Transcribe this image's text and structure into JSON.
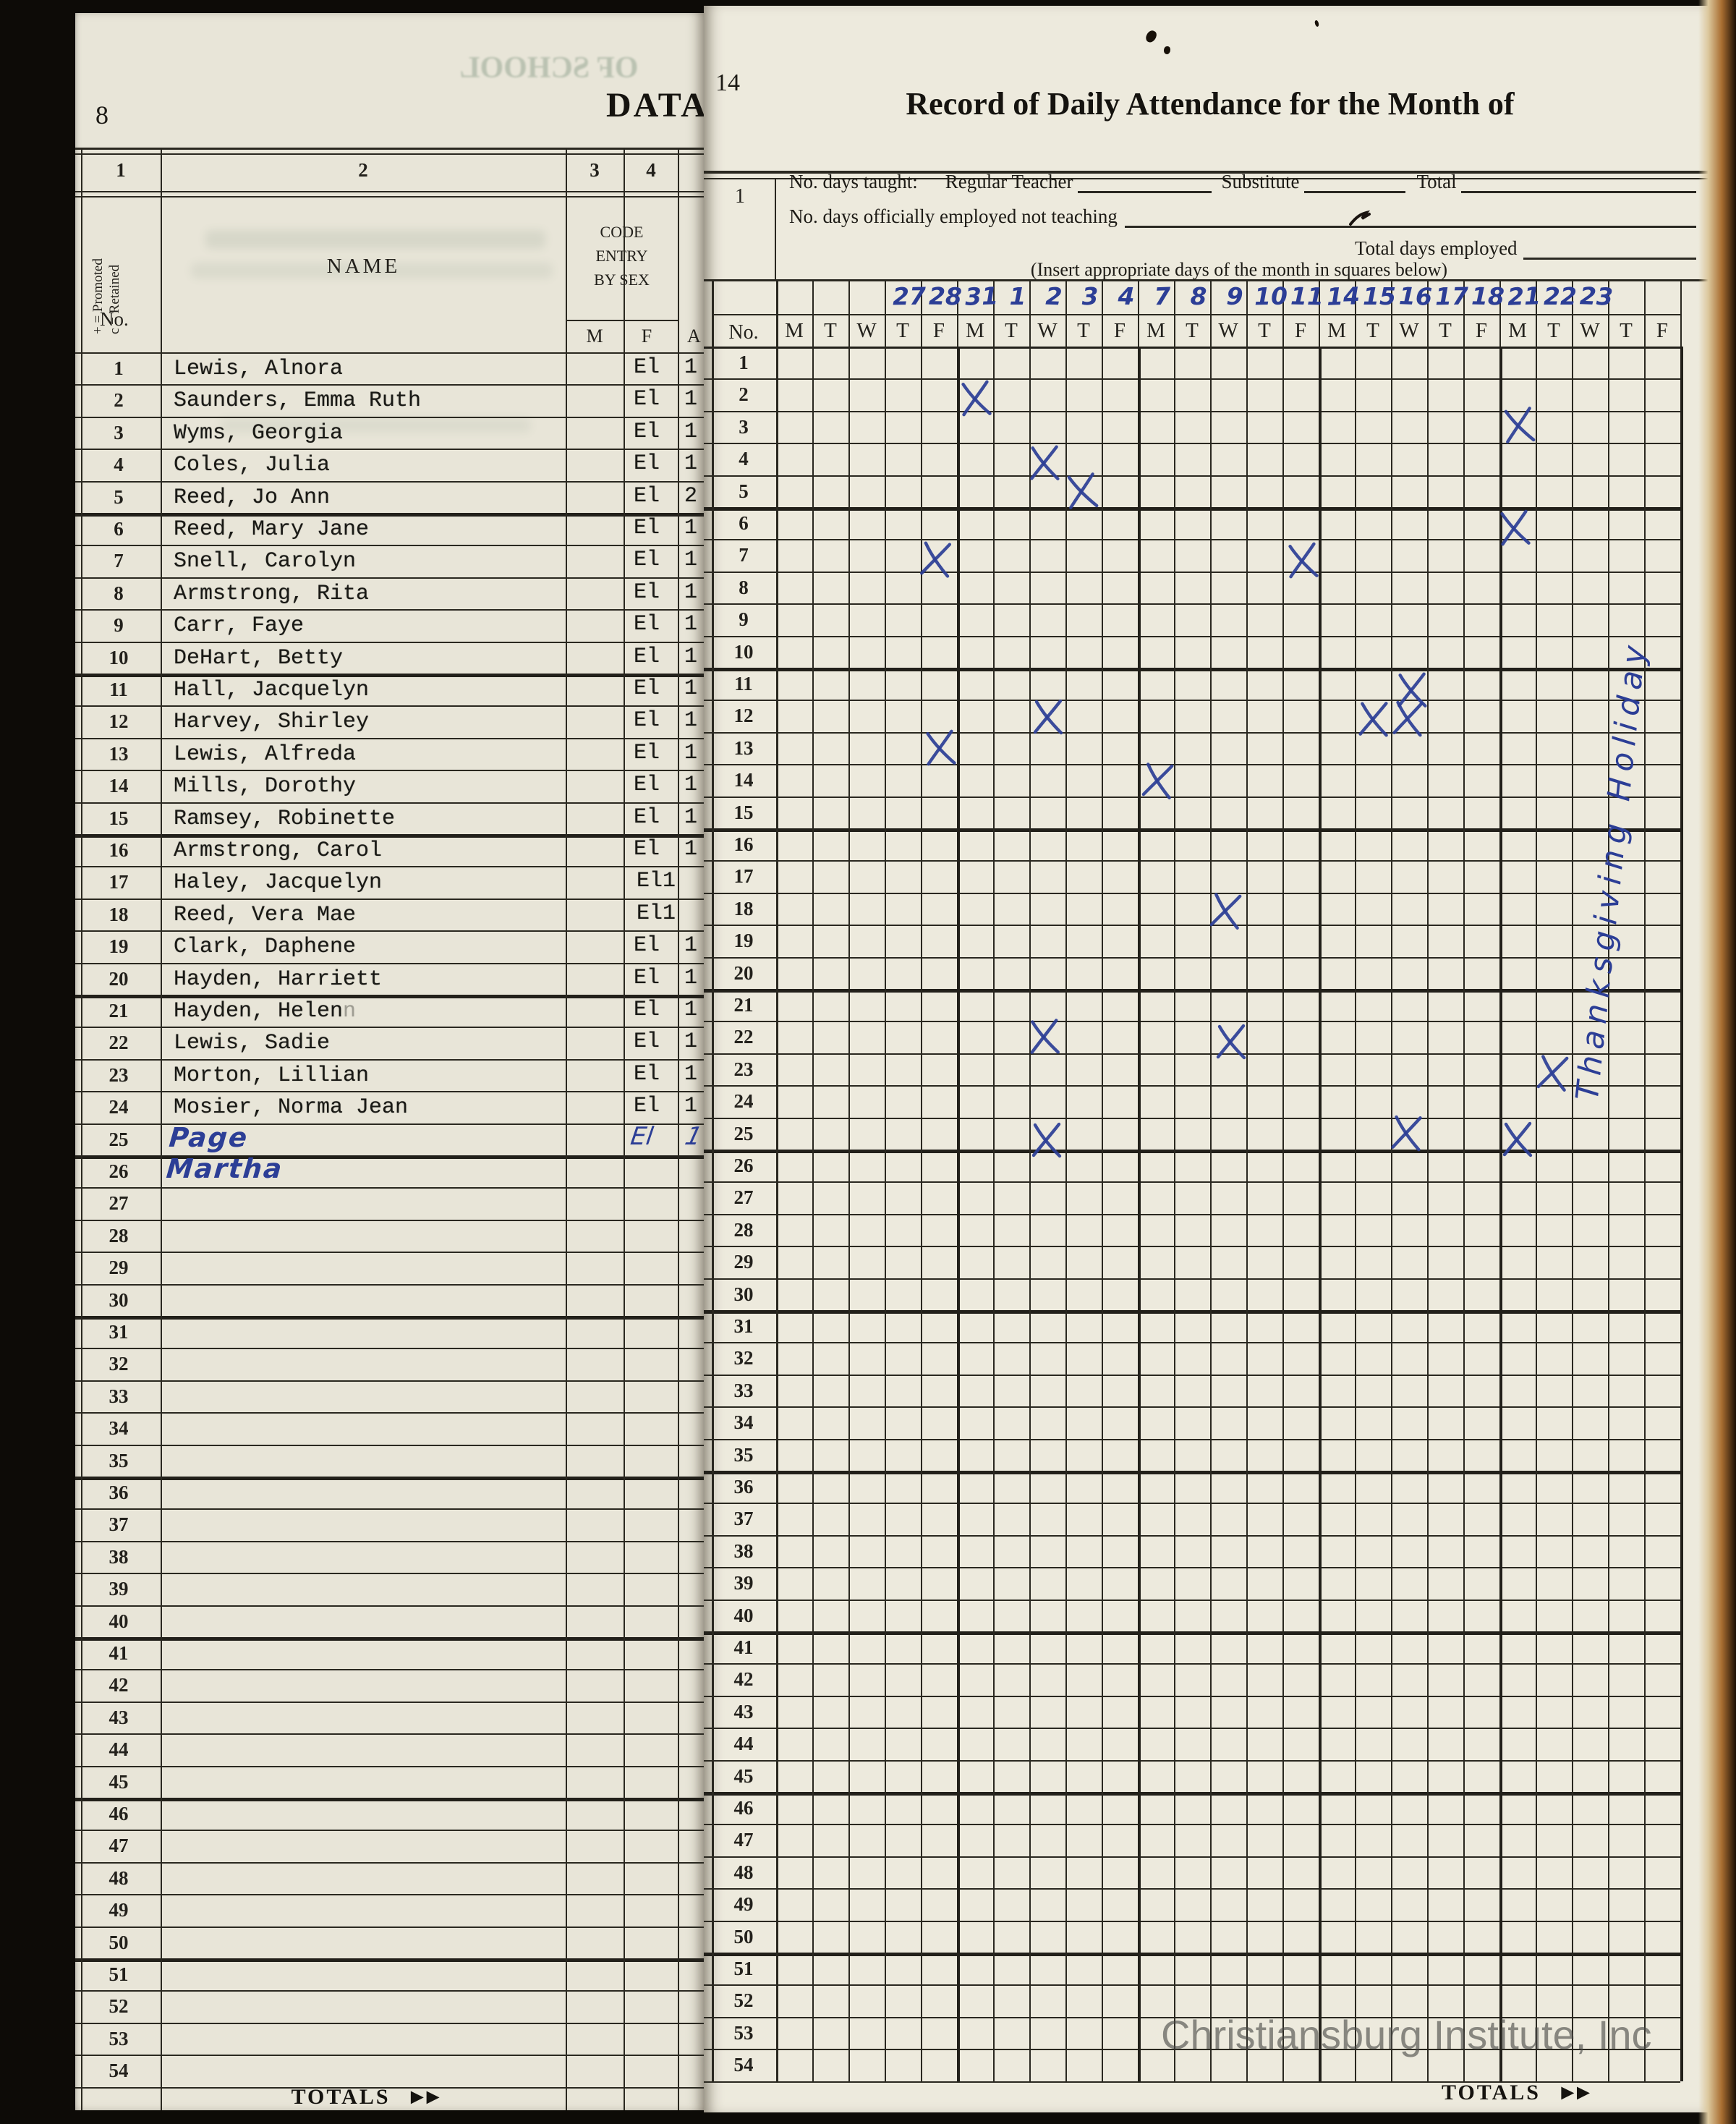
{
  "colors": {
    "ink_blue": "#2c3e96",
    "paper_left": "#e8e5d8",
    "paper_right": "#edeadd",
    "line": "#2a2820",
    "watermark_gray": "#484846"
  },
  "left_page": {
    "page_number": "8",
    "corner_title": "DATA",
    "bleed_text": "OF SCHOOL",
    "column_numbers": [
      "1",
      "2",
      "3",
      "4"
    ],
    "promoted_note": "+ = Promoted",
    "retained_note": "c = Retained",
    "no_label": "No.",
    "name_header": "NAME",
    "code_header_lines": [
      "CODE",
      "ENTRY",
      "BY SEX"
    ],
    "sex_male": "M",
    "sex_female": "F",
    "next_column_partial": "A",
    "row_count": 54,
    "totals_label": "TOTALS",
    "totals_arrow": "►►",
    "students": [
      {
        "no": 1,
        "name": "Lewis, Alnora",
        "code": "El",
        "edge": "1",
        "handwritten": false
      },
      {
        "no": 2,
        "name": "Saunders, Emma Ruth",
        "code": "El",
        "edge": "1",
        "handwritten": false
      },
      {
        "no": 3,
        "name": "Wyms, Georgia",
        "code": "El",
        "edge": "1",
        "handwritten": false
      },
      {
        "no": 4,
        "name": "Coles, Julia",
        "code": "El",
        "edge": "1",
        "handwritten": false
      },
      {
        "no": 5,
        "name": "Reed, Jo Ann",
        "code": "El",
        "edge": "2",
        "handwritten": false
      },
      {
        "no": 6,
        "name": "Reed, Mary Jane",
        "code": "El",
        "edge": "1",
        "handwritten": false
      },
      {
        "no": 7,
        "name": "Snell, Carolyn",
        "code": "El",
        "edge": "1",
        "handwritten": false
      },
      {
        "no": 8,
        "name": "Armstrong, Rita",
        "code": "El",
        "edge": "1",
        "handwritten": false
      },
      {
        "no": 9,
        "name": "Carr, Faye",
        "code": "El",
        "edge": "1",
        "handwritten": false
      },
      {
        "no": 10,
        "name": "DeHart, Betty",
        "code": "El",
        "edge": "1",
        "handwritten": false
      },
      {
        "no": 11,
        "name": "Hall, Jacquelyn",
        "code": "El",
        "edge": "1",
        "handwritten": false
      },
      {
        "no": 12,
        "name": "Harvey, Shirley",
        "code": "El",
        "edge": "1",
        "handwritten": false
      },
      {
        "no": 13,
        "name": "Lewis, Alfreda",
        "code": "El",
        "edge": "1",
        "handwritten": false
      },
      {
        "no": 14,
        "name": "Mills, Dorothy",
        "code": "El",
        "edge": "1",
        "handwritten": false
      },
      {
        "no": 15,
        "name": "Ramsey, Robinette",
        "code": "El",
        "edge": "1",
        "handwritten": false
      },
      {
        "no": 16,
        "name": "Armstrong, Carol",
        "code": "El",
        "edge": "1",
        "handwritten": false
      },
      {
        "no": 17,
        "name": "Haley, Jacquelyn",
        "code": "El1",
        "edge": "",
        "handwritten": false
      },
      {
        "no": 18,
        "name": "Reed, Vera Mae",
        "code": "El1",
        "edge": "",
        "handwritten": false
      },
      {
        "no": 19,
        "name": "Clark, Daphene",
        "code": "El",
        "edge": "1",
        "handwritten": false
      },
      {
        "no": 20,
        "name": "Hayden, Harriett",
        "code": "El",
        "edge": "1",
        "handwritten": false
      },
      {
        "no": 21,
        "name": "Hayden, Helen",
        "ghost_suffix": "n",
        "code": "El",
        "edge": "1",
        "handwritten": false
      },
      {
        "no": 22,
        "name": "Lewis, Sadie",
        "code": "El",
        "edge": "1",
        "handwritten": false
      },
      {
        "no": 23,
        "name": "Morton, Lillian",
        "code": "El",
        "edge": "1",
        "handwritten": false
      },
      {
        "no": 24,
        "name": "Mosier, Norma Jean",
        "code": "El",
        "edge": "1",
        "handwritten": false
      },
      {
        "no": 25,
        "name": "Page Martha",
        "code": "El",
        "edge": "1",
        "handwritten": true
      }
    ]
  },
  "right_page": {
    "page_number": "14",
    "title": "Record of Daily Attendance for the Month of",
    "row1_index": "1",
    "line1_label": "No. days taught:",
    "line1_regular": "Regular Teacher",
    "line1_substitute": "Substitute",
    "line1_total": "Total",
    "line2_label": "No. days officially employed not teaching",
    "line3_label": "Total days employed",
    "line4_label": "(Insert appropriate days of the month in squares below)",
    "no_label": "No.",
    "day_letters": [
      "M",
      "T",
      "W",
      "T",
      "F",
      "M",
      "T",
      "W",
      "T",
      "F",
      "M",
      "T",
      "W",
      "T",
      "F",
      "M",
      "T",
      "W",
      "T",
      "F",
      "M",
      "T",
      "W",
      "T",
      "F"
    ],
    "dates": [
      "",
      "",
      "",
      "27",
      "28",
      "31",
      "1",
      "2",
      "3",
      "4",
      "7",
      "8",
      "9",
      "10",
      "11",
      "14",
      "15",
      "16",
      "17",
      "18",
      "21",
      "22",
      "23",
      "",
      ""
    ],
    "row_count": 54,
    "absence_marks": [
      {
        "row": 2,
        "col": 6
      },
      {
        "row": 3,
        "col": 21
      },
      {
        "row": 4,
        "col": 8
      },
      {
        "row": 5,
        "col": 9
      },
      {
        "row": 6,
        "col": 21
      },
      {
        "row": 7,
        "col": 5
      },
      {
        "row": 7,
        "col": 15
      },
      {
        "row": 11,
        "col": 18
      },
      {
        "row": 12,
        "col": 8
      },
      {
        "row": 12,
        "col": 17
      },
      {
        "row": 12,
        "col": 18
      },
      {
        "row": 13,
        "col": 5
      },
      {
        "row": 14,
        "col": 11
      },
      {
        "row": 18,
        "col": 13
      },
      {
        "row": 22,
        "col": 8
      },
      {
        "row": 22,
        "col": 13
      },
      {
        "row": 23,
        "col": 22
      },
      {
        "row": 25,
        "col": 8
      },
      {
        "row": 25,
        "col": 18
      },
      {
        "row": 25,
        "col": 21
      }
    ],
    "holiday_note": "Thanksgiving Holiday",
    "totals_label": "TOTALS",
    "totals_arrow": "►►",
    "watermark": "Christiansburg Institute, Inc"
  }
}
